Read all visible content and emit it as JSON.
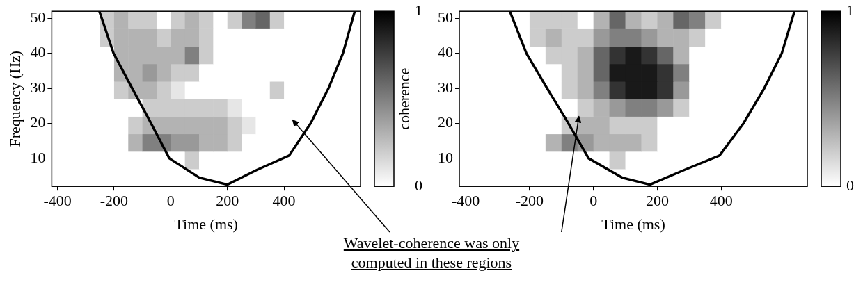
{
  "chart_data": [
    {
      "type": "heatmap",
      "x_label": "Time (ms)",
      "y_label": "Frequency (Hz)",
      "xlim": [
        -420,
        670
      ],
      "xticks": [
        -400,
        -200,
        0,
        200,
        400
      ],
      "ylim": [
        2,
        52
      ],
      "yticks": [
        10,
        20,
        30,
        40,
        50
      ],
      "grid": false,
      "x_bins": [
        -250,
        -200,
        -150,
        -100,
        -50,
        0,
        50,
        100,
        150,
        200,
        250,
        300,
        350,
        400,
        450,
        500,
        550,
        600,
        650
      ],
      "y_bins": [
        2,
        7,
        12,
        17,
        22,
        27,
        32,
        37,
        42,
        47,
        52
      ],
      "cells": [
        [
          0,
          0,
          0,
          0,
          0,
          0,
          0,
          0,
          0,
          0,
          0,
          0,
          0,
          0,
          0,
          0,
          0,
          0
        ],
        [
          0,
          0,
          0,
          0,
          0,
          0,
          0.2,
          0,
          0,
          0,
          0,
          0,
          0,
          0,
          0,
          0,
          0,
          0
        ],
        [
          0,
          0,
          0.3,
          0.5,
          0.5,
          0.4,
          0.4,
          0.3,
          0.3,
          0.2,
          0,
          0,
          0,
          0,
          0,
          0,
          0,
          0
        ],
        [
          0,
          0,
          0.2,
          0.3,
          0.3,
          0.3,
          0.3,
          0.3,
          0.3,
          0.2,
          0.1,
          0,
          0,
          0,
          0,
          0,
          0,
          0
        ],
        [
          0,
          0,
          0,
          0.2,
          0.2,
          0.2,
          0.2,
          0.2,
          0.2,
          0.1,
          0,
          0,
          0,
          0,
          0,
          0,
          0,
          0
        ],
        [
          0,
          0.2,
          0.3,
          0.3,
          0.2,
          0.1,
          0,
          0,
          0,
          0,
          0,
          0,
          0.2,
          0,
          0,
          0,
          0,
          0
        ],
        [
          0,
          0.3,
          0.3,
          0.4,
          0.3,
          0.2,
          0.2,
          0,
          0,
          0,
          0,
          0,
          0,
          0,
          0,
          0,
          0,
          0
        ],
        [
          0,
          0.3,
          0.3,
          0.3,
          0.3,
          0.3,
          0.5,
          0.2,
          0,
          0,
          0,
          0,
          0,
          0,
          0,
          0,
          0,
          0
        ],
        [
          0.2,
          0.3,
          0.3,
          0.3,
          0.2,
          0.3,
          0.3,
          0.2,
          0,
          0,
          0,
          0,
          0,
          0,
          0,
          0,
          0,
          0
        ],
        [
          0.2,
          0.3,
          0.2,
          0.2,
          0,
          0.2,
          0.3,
          0.2,
          0,
          0.2,
          0.5,
          0.6,
          0.2,
          0,
          0,
          0,
          0,
          0
        ]
      ],
      "colorbar": {
        "range": [
          0,
          1
        ],
        "ticks": [
          0,
          1
        ],
        "label": "coherence"
      },
      "cone": {
        "color": "#000000",
        "x": [
          -256,
          -202,
          -136,
          -76,
          -5,
          101,
          200,
          304,
          418,
          494,
          557,
          608,
          653
        ],
        "y": [
          53,
          40,
          30,
          21,
          10,
          4.5,
          2.5,
          6.7,
          10.8,
          20,
          30,
          40,
          53
        ]
      }
    },
    {
      "type": "heatmap",
      "x_label": "Time (ms)",
      "xlim": [
        -420,
        670
      ],
      "xticks": [
        -400,
        -200,
        0,
        200,
        400
      ],
      "ylim": [
        2,
        52
      ],
      "yticks": [
        10,
        20,
        30,
        40,
        50
      ],
      "grid": false,
      "x_bins": [
        -250,
        -200,
        -150,
        -100,
        -50,
        0,
        50,
        100,
        150,
        200,
        250,
        300,
        350,
        400,
        450,
        500,
        550,
        600,
        650
      ],
      "y_bins": [
        2,
        7,
        12,
        17,
        22,
        27,
        32,
        37,
        42,
        47,
        52
      ],
      "cells": [
        [
          0,
          0,
          0,
          0,
          0,
          0,
          0,
          0,
          0,
          0,
          0,
          0,
          0,
          0,
          0,
          0,
          0,
          0
        ],
        [
          0,
          0,
          0,
          0,
          0,
          0,
          0.2,
          0,
          0,
          0,
          0,
          0,
          0,
          0,
          0,
          0,
          0,
          0
        ],
        [
          0,
          0,
          0.3,
          0.5,
          0.4,
          0.3,
          0.3,
          0.3,
          0.2,
          0,
          0,
          0,
          0,
          0,
          0,
          0,
          0,
          0
        ],
        [
          0,
          0,
          0,
          0.2,
          0.3,
          0.3,
          0.2,
          0.2,
          0.2,
          0,
          0,
          0,
          0,
          0,
          0,
          0,
          0,
          0
        ],
        [
          0,
          0,
          0,
          0,
          0.2,
          0.3,
          0.4,
          0.5,
          0.5,
          0.4,
          0.2,
          0,
          0,
          0,
          0,
          0,
          0,
          0
        ],
        [
          0,
          0,
          0,
          0.2,
          0.3,
          0.5,
          0.8,
          0.9,
          0.9,
          0.8,
          0.4,
          0,
          0,
          0,
          0,
          0,
          0,
          0
        ],
        [
          0,
          0,
          0,
          0.2,
          0.3,
          0.6,
          0.9,
          0.9,
          0.9,
          0.8,
          0.5,
          0,
          0,
          0,
          0,
          0,
          0,
          0
        ],
        [
          0,
          0,
          0.2,
          0.2,
          0.3,
          0.6,
          0.8,
          0.9,
          0.8,
          0.6,
          0.3,
          0,
          0,
          0,
          0,
          0,
          0,
          0
        ],
        [
          0,
          0.2,
          0.3,
          0.2,
          0.2,
          0.4,
          0.5,
          0.5,
          0.4,
          0.3,
          0.3,
          0.2,
          0,
          0,
          0,
          0,
          0,
          0
        ],
        [
          0,
          0.2,
          0.2,
          0.2,
          0,
          0.3,
          0.6,
          0.3,
          0.2,
          0.3,
          0.6,
          0.5,
          0.2,
          0,
          0,
          0,
          0,
          0
        ]
      ],
      "colorbar": {
        "range": [
          0,
          1
        ],
        "ticks": [
          0,
          1
        ]
      },
      "cone": {
        "color": "#000000",
        "x": [
          -266,
          -210,
          -145,
          -85,
          -15,
          90,
          177,
          285,
          395,
          470,
          535,
          590,
          633
        ],
        "y": [
          53,
          40,
          30,
          21,
          10,
          4.5,
          2.5,
          6.7,
          10.8,
          20,
          30,
          40,
          53
        ]
      }
    }
  ],
  "annotation": "Wavelet-coherence was only computed in these regions"
}
